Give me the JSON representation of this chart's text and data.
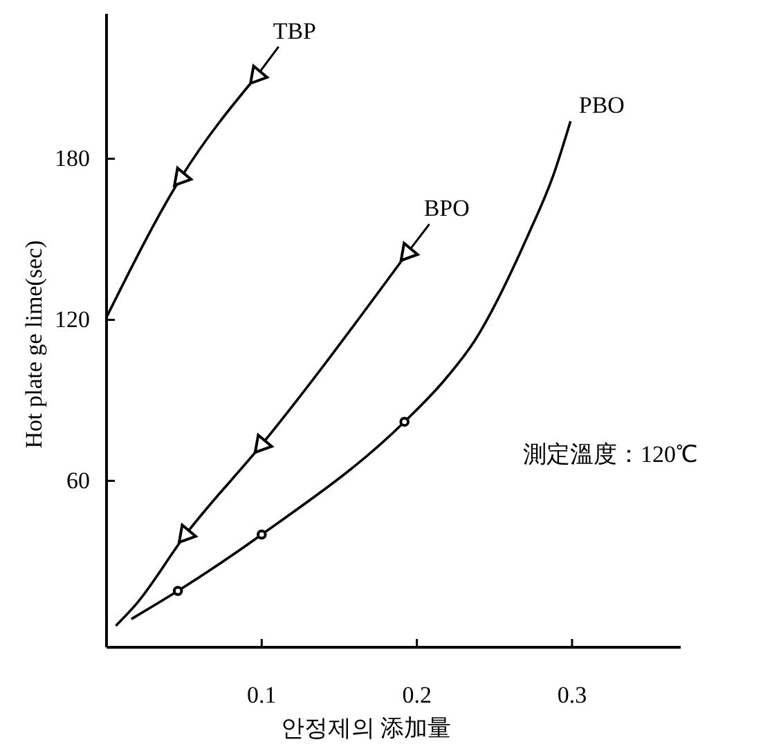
{
  "chart_data": {
    "type": "line",
    "xlabel": "안정제의 添加量",
    "ylabel": "Hot plate ge lime(sec)",
    "xlim": [
      0,
      0.37
    ],
    "ylim": [
      -2,
      234
    ],
    "xticks": [
      0.1,
      0.2,
      0.3
    ],
    "yticks": [
      60,
      120,
      180
    ],
    "grid": false,
    "annotations": [
      "測定溫度：120℃"
    ],
    "series": [
      {
        "name": "TBP",
        "color": "#000000",
        "marker": "none",
        "x": [
          0,
          0.048,
          0.097
        ],
        "values": [
          121,
          173,
          211
        ]
      },
      {
        "type": "scatter",
        "color": "#000000",
        "marker": "triangle",
        "x": [
          0.048,
          0.097
        ],
        "values": [
          173,
          211
        ]
      },
      {
        "name": "BPO",
        "color": "#000000",
        "marker": "none",
        "x": [
          0.006,
          0.019,
          0.051,
          0.1,
          0.194
        ],
        "values": [
          6,
          14,
          40,
          73.5,
          145
        ]
      },
      {
        "type": "scatter",
        "color": "#000000",
        "marker": "triangle",
        "x": [
          0.051,
          0.1,
          0.194
        ],
        "values": [
          40,
          73.5,
          145
        ]
      },
      {
        "name": "PBO",
        "color": "#000000",
        "marker": "none",
        "x": [
          0.016,
          0.046,
          0.1,
          0.192,
          0.217,
          0.237,
          0.272,
          0.288,
          0.299
        ],
        "values": [
          8.5,
          19,
          40,
          82,
          97,
          112,
          152,
          174,
          194
        ]
      },
      {
        "type": "scatter",
        "color": "#000000",
        "marker": "circle",
        "x": [
          0.046,
          0.1,
          0.192
        ],
        "values": [
          19,
          40,
          82
        ]
      }
    ]
  }
}
